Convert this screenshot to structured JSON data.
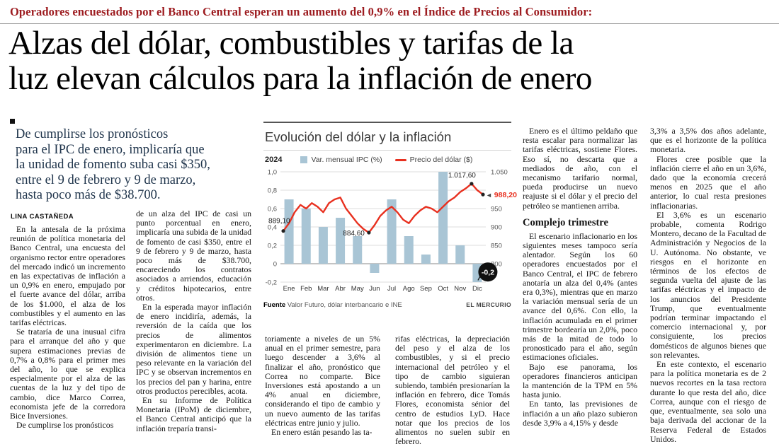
{
  "colors": {
    "kicker": "#9d1c20",
    "dek": "#20354c",
    "accent_red": "#e8301f",
    "bar_blue": "#a9c5d5"
  },
  "header": {
    "kicker": "Operadores encuestados por el Banco Central esperan un aumento del 0,9% en el Índice de Precios al Consumidor:",
    "headline": "Alzas del dólar, combustibles y tarifas de la\nluz elevan cálculos para la inflación de enero"
  },
  "lead": {
    "text": "De cumplirse los pronósticos\npara el IPC de enero, implicaría que\nla unidad de fomento suba casi $350,\nentre el 9 de febrero y 9 de marzo,\nhasta poco más de $38.700.",
    "byline": "LINA CASTAÑEDA"
  },
  "article": {
    "col1": [
      "En la antesala de la próxima reunión de política monetaria del Banco Central, una encuesta del organismo rector entre operadores del mercado indicó un incremento en las expectativas de inflación a un 0,9% en enero, empujado por el fuerte avance del dólar, arriba de los $1.000, el alza de los combustibles y el aumento en las tarifas eléctricas.",
      "Se trataría de una inusual cifra para el arranque del año y que supera estimaciones previas de 0,7% a 0,8% para el primer mes del año, lo que se explica especialmente por el alza de las cuentas de la luz y del tipo de cambio, dice Marco Correa, economista jefe de la corredora Bice Inversiones.",
      "De cumplirse los pronósticos"
    ],
    "col2": [
      "de un alza del IPC de casi un punto porcentual en enero, implicaría una subida de la unidad de fomento de casi $350, entre el 9 de febrero y 9 de marzo, hasta poco más de $38.700, encareciendo los contratos asociados a arriendos, educación y créditos hipotecarios, entre otros.",
      "En la esperada mayor inflación de enero incidiría, además, la reversión de la caída que los precios de alimentos experimentaron en diciembre. La división de alimentos tiene un peso relevante en la variación del IPC y se observan incrementos en los precios del pan y harina, entre otros productos perecibles, acota.",
      "En su Informe de Política Monetaria (IPoM) de diciembre, el Banco Central anticipó que la inflación treparía transi-"
    ],
    "mid_a": [
      "toriamente a niveles de un 5% anual en el primer semestre, para luego descender a 3,6% al finalizar el año, pronóstico que Correa no comparte. Bice Inversiones está apostando a un 4% anual en diciembre, considerando el tipo de cambio y un nuevo aumento de las tarifas eléctricas entre junio y julio.",
      "En enero están pesando las ta-"
    ],
    "mid_b": [
      "rifas eléctricas, la depreciación del peso y el alza de los combustibles, y si el precio internacional del petróleo y el tipo de cambio siguieran subiendo, también presionarían la inflación en febrero, dice Tomás Flores, economista sénior del centro de estudios LyD. Hace notar que los precios de los alimentos no suelen subir en febrero."
    ],
    "col5": {
      "p1": "Enero es el último peldaño que resta escalar para normalizar las tarifas eléctricas, sostiene Flores. Eso sí, no descarta que a mediados de año, con el mecanismo tarifario normal, pueda producirse un nuevo reajuste si el dólar y el precio del petróleo se mantienen arriba.",
      "subhead": "Complejo trimestre",
      "p2": "El escenario inflacionario en los siguientes meses tampoco sería alentador. Según los 60 operadores encuestados por el Banco Central, el IPC de febrero anotaría un alza del 0,4% (antes era 0,3%), mientras que en marzo la variación mensual sería de un avance del 0,6%. Con ello, la inflación acumulada en el primer trimestre bordearía un 2,0%, poco más de la mitad de todo lo pronosticado para el año, según estimaciones oficiales.",
      "p3": "Bajo ese panorama, los operadores financieros anticipan la mantención de la TPM en 5% hasta junio.",
      "p4": "En tanto, las previsiones de inflación a un año plazo subieron desde 3,9% a 4,15% y desde"
    },
    "col6": [
      "3,3% a 3,5% dos años adelante, que es el horizonte de la política monetaria.",
      "Flores cree posible que la inflación cierre el año en un 3,6%, dado que la economía crecerá menos en 2025 que el año anterior, lo cual resta presiones inflacionarias.",
      "El 3,6% es un escenario probable, comenta Rodrigo Montero, decano de la Facultad de Administración y Negocios de la U. Autónoma. No obstante, ve riesgos en el horizonte en términos de los efectos de segunda vuelta del ajuste de las tarifas eléctricas y el impacto de los anuncios del Presidente Trump, que eventualmente podrían terminar impactando el comercio internacional y, por consiguiente, los precios domésticos de algunos bienes que son relevantes.",
      "En este contexto, el escenario para la política monetaria es de 2 nuevos recortes en la tasa rectora durante lo que resta del año, dice Correa, aunque con el riesgo de que, eventualmente, sea solo una baja derivada del accionar de la Reserva Federal de Estados Unidos."
    ]
  },
  "chart_data": {
    "type": "bar+line",
    "title": "Evolución del dólar y la inflación",
    "year_label": "2024",
    "legend": [
      {
        "label": "Var. mensual IPC (%)",
        "kind": "bar",
        "color": "#a9c5d5"
      },
      {
        "label": "Precio del dólar ($)",
        "kind": "line",
        "color": "#e8301f"
      }
    ],
    "categories": [
      "Ene",
      "Feb",
      "Mar",
      "Abr",
      "May",
      "Jun",
      "Jul",
      "Ago",
      "Sep",
      "Oct",
      "Nov",
      "Dic"
    ],
    "series": [
      {
        "name": "Var. mensual IPC (%)",
        "axis": "left",
        "type": "bar",
        "values": [
          0.7,
          0.6,
          0.4,
          0.5,
          0.3,
          -0.1,
          0.7,
          0.3,
          0.1,
          1.0,
          0.2,
          -0.2
        ]
      },
      {
        "name": "Precio del dólar ($)",
        "axis": "right",
        "type": "line",
        "values_daily": [
          889.1,
          910,
          940,
          960,
          950,
          965,
          955,
          940,
          965,
          975,
          980,
          950,
          930,
          910,
          895,
          884.6,
          905,
          930,
          945,
          955,
          940,
          920,
          910,
          930,
          945,
          955,
          950,
          940,
          955,
          970,
          980,
          995,
          1005,
          1017.6,
          1000,
          988.2
        ]
      }
    ],
    "left_axis": {
      "range": [
        -0.2,
        1.0
      ],
      "ticks": [
        {
          "v": 1.0,
          "label": "1,0"
        },
        {
          "v": 0.8,
          "label": "0,8"
        },
        {
          "v": 0.6,
          "label": "0,6"
        },
        {
          "v": 0.4,
          "label": "0,4"
        },
        {
          "v": 0.2,
          "label": "0,2"
        },
        {
          "v": 0,
          "label": "0"
        },
        {
          "v": -0.2,
          "label": "-0,2"
        }
      ]
    },
    "right_axis": {
      "range": [
        800,
        1050
      ],
      "ticks": [
        {
          "v": 1050,
          "label": "1.050"
        },
        {
          "v": 950,
          "label": "950"
        },
        {
          "v": 900,
          "label": "900"
        },
        {
          "v": 850,
          "label": "850"
        },
        {
          "v": 800,
          "label": "800"
        }
      ]
    },
    "annotations": {
      "start": "889,10",
      "low": "884,60",
      "peak": "1.017,60",
      "end": "988,20",
      "end_arrow": "◄",
      "dec_badge": "-0,2"
    },
    "source_bold": "Fuente",
    "source_rest": " Valor Futuro, dólar interbancario e INE",
    "credit": "EL MERCURIO"
  }
}
